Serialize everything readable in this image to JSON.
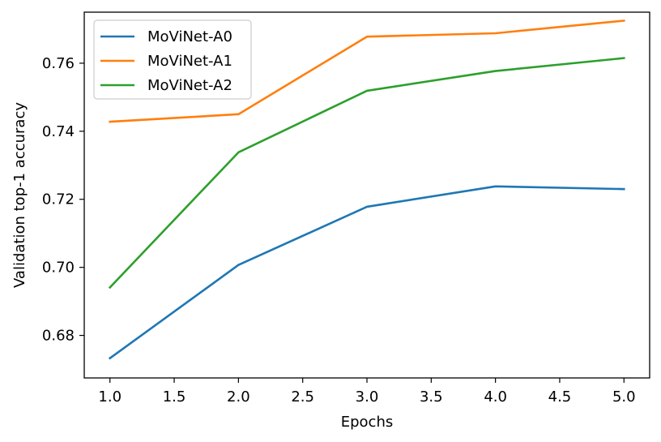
{
  "chart_data": {
    "type": "line",
    "xlabel": "Epochs",
    "ylabel": "Validation top-1 accuracy",
    "x": [
      1.0,
      2.0,
      3.0,
      4.0,
      5.0
    ],
    "xlim": [
      0.8,
      5.2
    ],
    "ylim": [
      0.6675,
      0.775
    ],
    "xticks": [
      1.0,
      1.5,
      2.0,
      2.5,
      3.0,
      3.5,
      4.0,
      4.5,
      5.0
    ],
    "xtick_labels": [
      "1.0",
      "1.5",
      "2.0",
      "2.5",
      "3.0",
      "3.5",
      "4.0",
      "4.5",
      "5.0"
    ],
    "yticks": [
      0.68,
      0.7,
      0.72,
      0.74,
      0.76
    ],
    "ytick_labels": [
      "0.68",
      "0.70",
      "0.72",
      "0.74",
      "0.76"
    ],
    "grid": false,
    "legend_position": "top-left",
    "series": [
      {
        "name": "MoViNet-A0",
        "color": "#1f77b4",
        "values": [
          0.6733,
          0.7007,
          0.7178,
          0.7238,
          0.723
        ]
      },
      {
        "name": "MoViNet-A1",
        "color": "#ff7f0e",
        "values": [
          0.7428,
          0.745,
          0.7678,
          0.7688,
          0.7725
        ]
      },
      {
        "name": "MoViNet-A2",
        "color": "#2ca02c",
        "values": [
          0.6941,
          0.7338,
          0.7519,
          0.7577,
          0.7615
        ]
      }
    ]
  }
}
